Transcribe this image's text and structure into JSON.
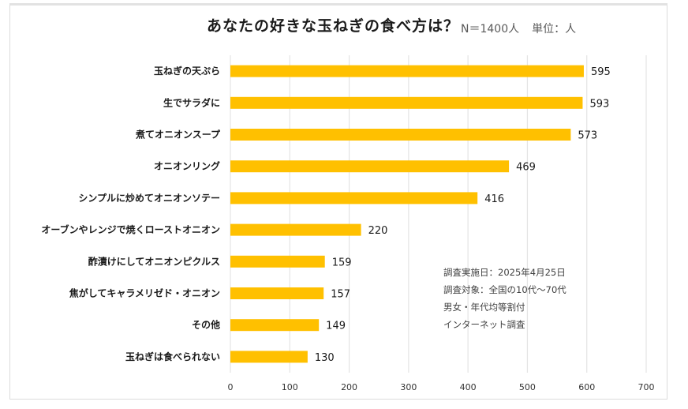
{
  "header": {
    "title": "あなたの好きな玉ねぎの食べ方は？",
    "sample_size": "N＝1400人",
    "unit": "単位：人"
  },
  "notes": [
    "調査実施日：2025年4月25日",
    "調査対象：全国の10代〜70代",
    "男女・年代均等割付",
    "インターネット調査"
  ],
  "colors": {
    "bar": "#FFC000",
    "grid": "#e4e4e4",
    "text": "#1a1a1a"
  },
  "chart_data": {
    "type": "bar",
    "orientation": "horizontal",
    "title": "あなたの好きな玉ねぎの食べ方は？",
    "xlabel": "",
    "ylabel": "",
    "xlim": [
      0,
      700
    ],
    "x_ticks": [
      0,
      100,
      200,
      300,
      400,
      500,
      600,
      700
    ],
    "grid": true,
    "categories": [
      "玉ねぎの天ぷら",
      "生でサラダに",
      "煮てオニオンスープ",
      "オニオンリング",
      "シンプルに炒めてオニオンソテー",
      "オーブンやレンジで焼くローストオニオン",
      "酢漬けにしてオニオンピクルス",
      "焦がしてキャラメリゼド・オニオン",
      "その他",
      "玉ねぎは食べられない"
    ],
    "values": [
      595,
      593,
      573,
      469,
      416,
      220,
      159,
      157,
      149,
      130
    ],
    "data_labels": true
  }
}
